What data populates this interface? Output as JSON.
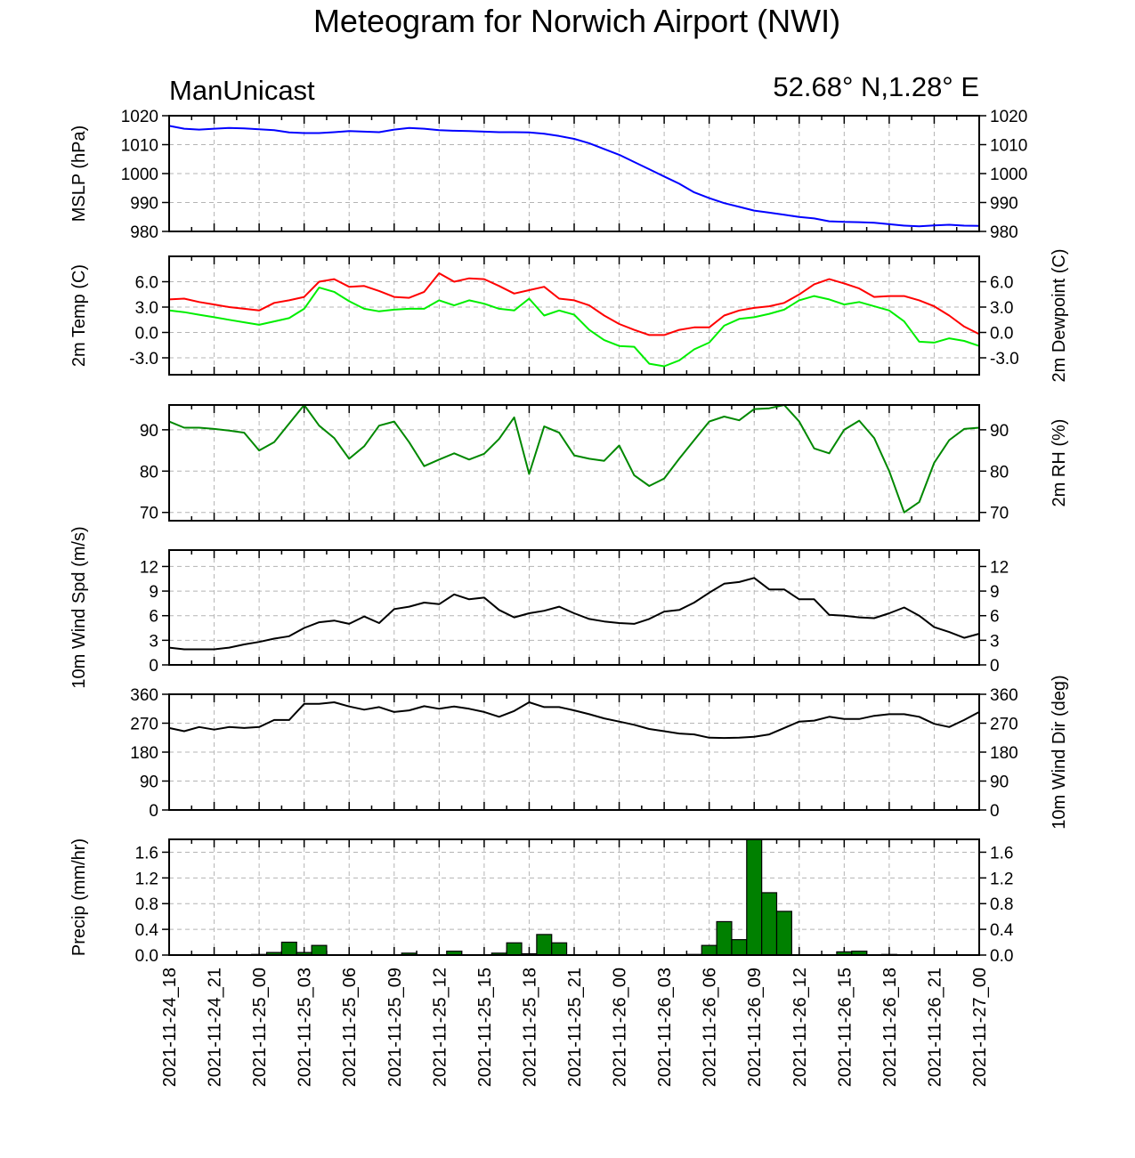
{
  "title": "Meteogram for Norwich Airport (NWI)",
  "subtitle_left": "ManUnicast",
  "subtitle_right": "52.68° N,1.28° E",
  "chart_data": {
    "type": "line",
    "x_ticks": [
      "2021-11-24_18",
      "2021-11-24_21",
      "2021-11-25_00",
      "2021-11-25_03",
      "2021-11-25_06",
      "2021-11-25_09",
      "2021-11-25_12",
      "2021-11-25_15",
      "2021-11-25_18",
      "2021-11-25_21",
      "2021-11-26_00",
      "2021-11-26_03",
      "2021-11-26_06",
      "2021-11-26_09",
      "2021-11-26_12",
      "2021-11-26_15",
      "2021-11-26_18",
      "2021-11-26_21",
      "2021-11-27_00"
    ],
    "x_range_hours": [
      0,
      54
    ],
    "grid": true,
    "panels": [
      {
        "id": "mslp",
        "ylabel_left": "MSLP (hPa)",
        "ylabel_right": "",
        "ylim": [
          980,
          1020
        ],
        "yticks": [
          "980",
          "990",
          "1000",
          "1010",
          "1020"
        ],
        "series": [
          {
            "color": "#0000ff",
            "x": [
              0,
              1,
              2,
              3,
              4,
              5,
              6,
              7,
              8,
              9,
              10,
              11,
              12,
              13,
              14,
              15,
              16,
              17,
              18,
              19,
              20,
              21,
              22,
              23,
              24,
              25,
              26,
              27,
              28,
              29,
              30,
              31,
              32,
              33,
              34,
              35,
              36,
              37,
              38,
              39,
              40,
              41,
              42,
              43,
              44,
              45,
              46,
              47,
              48,
              49,
              50,
              51,
              52,
              53,
              54
            ],
            "y": [
              1016.5,
              1015.5,
              1015.2,
              1015.5,
              1015.8,
              1015.6,
              1015.3,
              1015.0,
              1014.2,
              1014.0,
              1014.0,
              1014.3,
              1014.7,
              1014.5,
              1014.3,
              1015.2,
              1015.8,
              1015.5,
              1015.0,
              1014.8,
              1014.7,
              1014.5,
              1014.3,
              1014.3,
              1014.2,
              1013.8,
              1013.0,
              1012.0,
              1010.5,
              1008.5,
              1006.5,
              1004.0,
              1001.5,
              999.0,
              996.5,
              993.5,
              991.5,
              989.8,
              988.5,
              987.2,
              986.5,
              985.8,
              985.0,
              984.5,
              983.5,
              983.3,
              983.2,
              983.0,
              982.5,
              982.0,
              981.8,
              982.1,
              982.3,
              982.0,
              981.9
            ]
          }
        ]
      },
      {
        "id": "temp",
        "ylabel_left": "2m Temp (C)",
        "ylabel_right": "2m Dewpoint (C)",
        "ylim": [
          -5,
          9
        ],
        "yticks": [
          "-3.0",
          "0.0",
          "3.0",
          "6.0"
        ],
        "ytick_values": [
          -3,
          0,
          3,
          6
        ],
        "series": [
          {
            "color": "#ff0000",
            "x": [
              0,
              1,
              2,
              3,
              4,
              5,
              6,
              7,
              8,
              9,
              10,
              11,
              12,
              13,
              14,
              15,
              16,
              17,
              18,
              19,
              20,
              21,
              22,
              23,
              24,
              25,
              26,
              27,
              28,
              29,
              30,
              31,
              32,
              33,
              34,
              35,
              36,
              37,
              38,
              39,
              40,
              41,
              42,
              43,
              44,
              45,
              46,
              47,
              48,
              49,
              50,
              51,
              52,
              53,
              54
            ],
            "y": [
              3.9,
              4.0,
              3.6,
              3.3,
              3.0,
              2.8,
              2.6,
              3.5,
              3.8,
              4.2,
              6.0,
              6.3,
              5.4,
              5.5,
              4.9,
              4.2,
              4.1,
              4.8,
              7.0,
              6.0,
              6.4,
              6.3,
              5.5,
              4.6,
              5.0,
              5.4,
              4.0,
              3.8,
              3.2,
              2.0,
              1.0,
              0.3,
              -0.3,
              -0.3,
              0.3,
              0.6,
              0.6,
              2.0,
              2.6,
              2.9,
              3.1,
              3.5,
              4.5,
              5.7,
              6.3,
              5.8,
              5.2,
              4.2,
              4.3,
              4.3,
              3.8,
              3.1,
              2.0,
              0.7,
              -0.2
            ]
          },
          {
            "color": "#00ee00",
            "x": [
              0,
              1,
              2,
              3,
              4,
              5,
              6,
              7,
              8,
              9,
              10,
              11,
              12,
              13,
              14,
              15,
              16,
              17,
              18,
              19,
              20,
              21,
              22,
              23,
              24,
              25,
              26,
              27,
              28,
              29,
              30,
              31,
              32,
              33,
              34,
              35,
              36,
              37,
              38,
              39,
              40,
              41,
              42,
              43,
              44,
              45,
              46,
              47,
              48,
              49,
              50,
              51,
              52,
              53,
              54
            ],
            "y": [
              2.6,
              2.4,
              2.1,
              1.8,
              1.5,
              1.2,
              0.9,
              1.3,
              1.7,
              2.8,
              5.3,
              4.8,
              3.7,
              2.8,
              2.5,
              2.7,
              2.8,
              2.8,
              3.8,
              3.2,
              3.8,
              3.4,
              2.8,
              2.6,
              4.0,
              2.0,
              2.6,
              2.1,
              0.3,
              -0.9,
              -1.6,
              -1.7,
              -3.7,
              -4.0,
              -3.3,
              -2.0,
              -1.2,
              0.8,
              1.6,
              1.8,
              2.2,
              2.7,
              3.8,
              4.3,
              3.9,
              3.3,
              3.6,
              3.1,
              2.6,
              1.3,
              -1.1,
              -1.2,
              -0.7,
              -1.0,
              -1.6
            ]
          }
        ]
      },
      {
        "id": "rh",
        "ylabel_left": "",
        "ylabel_right": "2m RH (%)",
        "ylim": [
          68,
          96
        ],
        "yticks": [
          "70",
          "80",
          "90"
        ],
        "ytick_values": [
          70,
          80,
          90
        ],
        "series": [
          {
            "color": "#008800",
            "x": [
              0,
              1,
              2,
              3,
              4,
              5,
              6,
              7,
              8,
              9,
              10,
              11,
              12,
              13,
              14,
              15,
              16,
              17,
              18,
              19,
              20,
              21,
              22,
              23,
              24,
              25,
              26,
              27,
              28,
              29,
              30,
              31,
              32,
              33,
              34,
              35,
              36,
              37,
              38,
              39,
              40,
              41,
              42,
              43,
              44,
              45,
              46,
              47,
              48,
              49,
              50,
              51,
              52,
              53,
              54
            ],
            "y": [
              92,
              90.5,
              90.5,
              90.2,
              89.8,
              89.3,
              85,
              87,
              91.5,
              96,
              91,
              88,
              83,
              86,
              91,
              92,
              87,
              81.2,
              82.8,
              84.3,
              82.8,
              84.2,
              87.8,
              93,
              79.3,
              90.8,
              89.3,
              83.8,
              83,
              82.5,
              86.2,
              79,
              76.4,
              78.2,
              83,
              87.5,
              92,
              93.2,
              92.3,
              95,
              95.2,
              96,
              92,
              85.5,
              84.3,
              90,
              92.2,
              88,
              80,
              70,
              72.5,
              82,
              87.5,
              90.2,
              90.5
            ]
          }
        ]
      },
      {
        "id": "wspd",
        "ylabel_left": "10m Wind Spd (m/s)",
        "ylabel_right": "",
        "ylim": [
          0,
          14
        ],
        "yticks": [
          "0",
          "3",
          "6",
          "9",
          "12"
        ],
        "ytick_values": [
          0,
          3,
          6,
          9,
          12
        ],
        "series": [
          {
            "color": "#000000",
            "x": [
              0,
              1,
              2,
              3,
              4,
              5,
              6,
              7,
              8,
              9,
              10,
              11,
              12,
              13,
              14,
              15,
              16,
              17,
              18,
              19,
              20,
              21,
              22,
              23,
              24,
              25,
              26,
              27,
              28,
              29,
              30,
              31,
              32,
              33,
              34,
              35,
              36,
              37,
              38,
              39,
              40,
              41,
              42,
              43,
              44,
              45,
              46,
              47,
              48,
              49,
              50,
              51,
              52,
              53,
              54
            ],
            "y": [
              2.1,
              1.9,
              1.9,
              1.9,
              2.1,
              2.5,
              2.8,
              3.2,
              3.5,
              4.5,
              5.2,
              5.4,
              5.0,
              5.9,
              5.1,
              6.8,
              7.1,
              7.6,
              7.4,
              8.6,
              8.0,
              8.2,
              6.7,
              5.8,
              6.3,
              6.6,
              7.1,
              6.3,
              5.6,
              5.3,
              5.1,
              5.0,
              5.6,
              6.5,
              6.7,
              7.6,
              8.8,
              9.9,
              10.1,
              10.6,
              9.2,
              9.2,
              8.0,
              8.0,
              6.1,
              6.0,
              5.8,
              5.7,
              6.3,
              7.0,
              6.0,
              4.6,
              4.0,
              3.3,
              3.8
            ]
          }
        ]
      },
      {
        "id": "wdir",
        "ylabel_left": "",
        "ylabel_right": "10m Wind Dir (deg)",
        "ylim": [
          0,
          360
        ],
        "yticks": [
          "0",
          "90",
          "180",
          "270",
          "360"
        ],
        "ytick_values": [
          0,
          90,
          180,
          270,
          360
        ],
        "series": [
          {
            "color": "#000000",
            "x": [
              0,
              1,
              2,
              3,
              4,
              5,
              6,
              7,
              8,
              9,
              10,
              11,
              12,
              13,
              14,
              15,
              16,
              17,
              18,
              19,
              20,
              21,
              22,
              23,
              24,
              25,
              26,
              27,
              28,
              29,
              30,
              31,
              32,
              33,
              34,
              35,
              36,
              37,
              38,
              39,
              40,
              41,
              42,
              43,
              44,
              45,
              46,
              47,
              48,
              49,
              50,
              51,
              52,
              53,
              54
            ],
            "y": [
              255,
              245,
              258,
              250,
              258,
              255,
              258,
              280,
              280,
              330,
              330,
              335,
              322,
              312,
              320,
              305,
              310,
              323,
              315,
              322,
              315,
              305,
              290,
              308,
              335,
              320,
              320,
              310,
              298,
              285,
              275,
              265,
              252,
              245,
              238,
              235,
              225,
              224,
              225,
              228,
              235,
              255,
              275,
              278,
              290,
              283,
              283,
              293,
              298,
              298,
              290,
              268,
              258,
              280,
              305
            ]
          }
        ]
      },
      {
        "id": "precip",
        "type": "bar",
        "ylabel_left": "Precip (mm/hr)",
        "ylabel_right": "",
        "ylim": [
          0,
          1.8
        ],
        "yticks": [
          "0.0",
          "0.4",
          "0.8",
          "1.2",
          "1.6"
        ],
        "ytick_values": [
          0,
          0.4,
          0.8,
          1.2,
          1.6
        ],
        "bar_color": "#008000",
        "x": [
          5,
          6,
          7,
          8,
          9,
          10,
          11,
          12,
          13,
          14,
          15,
          16,
          17,
          18,
          19,
          20,
          21,
          22,
          23,
          24,
          25,
          26,
          27,
          28,
          29,
          30,
          31,
          32,
          33,
          34,
          35,
          36,
          37,
          38,
          39,
          40,
          41,
          42,
          43,
          44,
          45,
          46,
          47,
          48,
          49,
          50,
          51,
          52,
          53
        ],
        "values": [
          0.0,
          0.01,
          0.04,
          0.2,
          0.04,
          0.15,
          0,
          0,
          0,
          0,
          0,
          0.03,
          0,
          0,
          0.06,
          0,
          0,
          0.03,
          0.19,
          0.02,
          0.32,
          0.19,
          0,
          0,
          0,
          0,
          0,
          0,
          0,
          0,
          0.01,
          0.15,
          0.52,
          0.24,
          1.8,
          0.97,
          0.68,
          0,
          0,
          0,
          0.05,
          0.06,
          0,
          0.01,
          0,
          0,
          0,
          0,
          0
        ]
      }
    ]
  }
}
